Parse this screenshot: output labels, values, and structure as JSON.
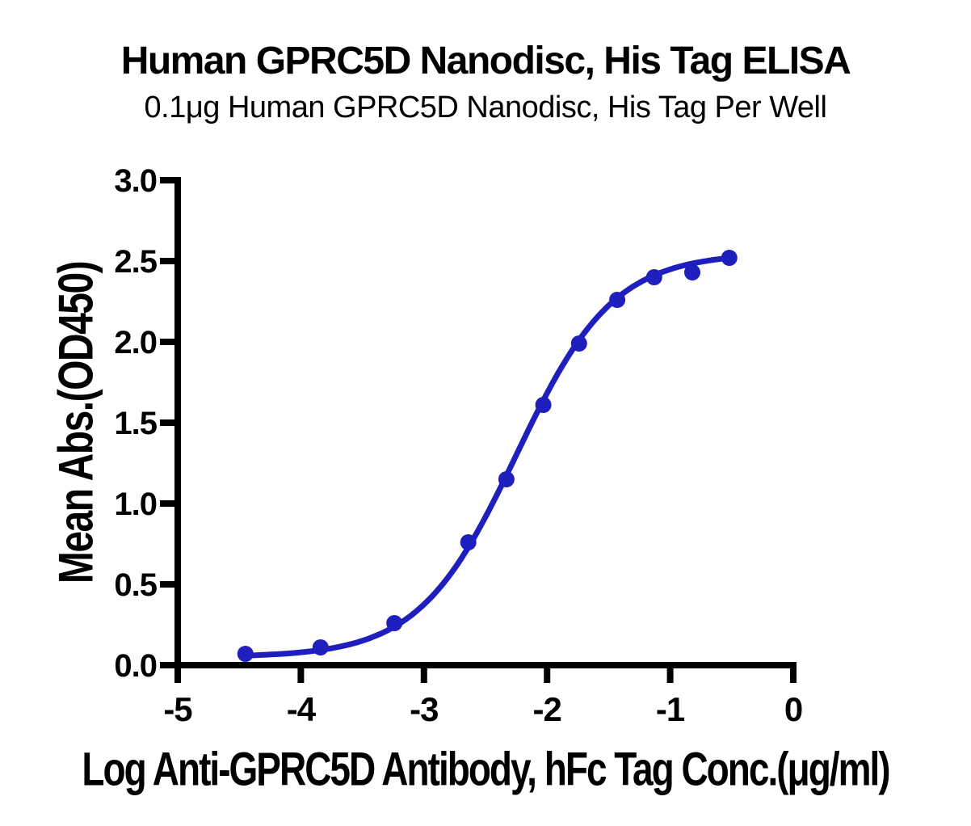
{
  "page": {
    "background": "#ffffff"
  },
  "chart": {
    "title": "Human GPRC5D Nanodisc, His Tag ELISA",
    "subtitle": "0.1μg Human GPRC5D Nanodisc, His Tag Per Well",
    "xlabel": "Log Anti-GPRC5D Antibody, hFc Tag Conc.(μg/ml)",
    "ylabel": "Mean Abs.(OD450)"
  },
  "chart_data": {
    "type": "scatter",
    "title": "Human GPRC5D Nanodisc, His Tag ELISA",
    "subtitle": "0.1μg Human GPRC5D Nanodisc, His Tag Per Well",
    "xlabel": "Log Anti-GPRC5D Antibody, hFc Tag Conc.(μg/ml)",
    "ylabel": "Mean Abs.(OD450)",
    "xlim": [
      -5,
      0
    ],
    "ylim": [
      0,
      3
    ],
    "grid": false,
    "legend": "none",
    "axis_color": "#000000",
    "x_ticks": {
      "values": [
        -5,
        -4,
        -3,
        -2,
        -1,
        0
      ],
      "labels": [
        "-5",
        "-4",
        "-3",
        "-2",
        "-1",
        "0"
      ]
    },
    "y_ticks": {
      "values": [
        0.0,
        0.5,
        1.0,
        1.5,
        2.0,
        2.5,
        3.0
      ],
      "labels": [
        "0.0",
        "0.5",
        "1.0",
        "1.5",
        "2.0",
        "2.5",
        "3.0"
      ]
    },
    "series": [
      {
        "name": "Anti-GPRC5D Antibody, hFc Tag",
        "marker": "circle",
        "marker_color": "#1F1FBE",
        "line_color": "#1F1FBE",
        "points": [
          [
            -4.45,
            0.07
          ],
          [
            -3.84,
            0.11
          ],
          [
            -3.24,
            0.26
          ],
          [
            -2.64,
            0.76
          ],
          [
            -2.33,
            1.15
          ],
          [
            -2.03,
            1.61
          ],
          [
            -1.74,
            1.99
          ],
          [
            -1.43,
            2.26
          ],
          [
            -1.13,
            2.4
          ],
          [
            -0.82,
            2.43
          ],
          [
            -0.52,
            2.52
          ]
        ]
      }
    ],
    "curve_fit": {
      "model": "4PL",
      "bottom": 0.05,
      "top": 2.55,
      "log_ec50": -2.25,
      "hill_slope": 1.1,
      "x_start": -4.45,
      "x_end": -0.52
    }
  }
}
